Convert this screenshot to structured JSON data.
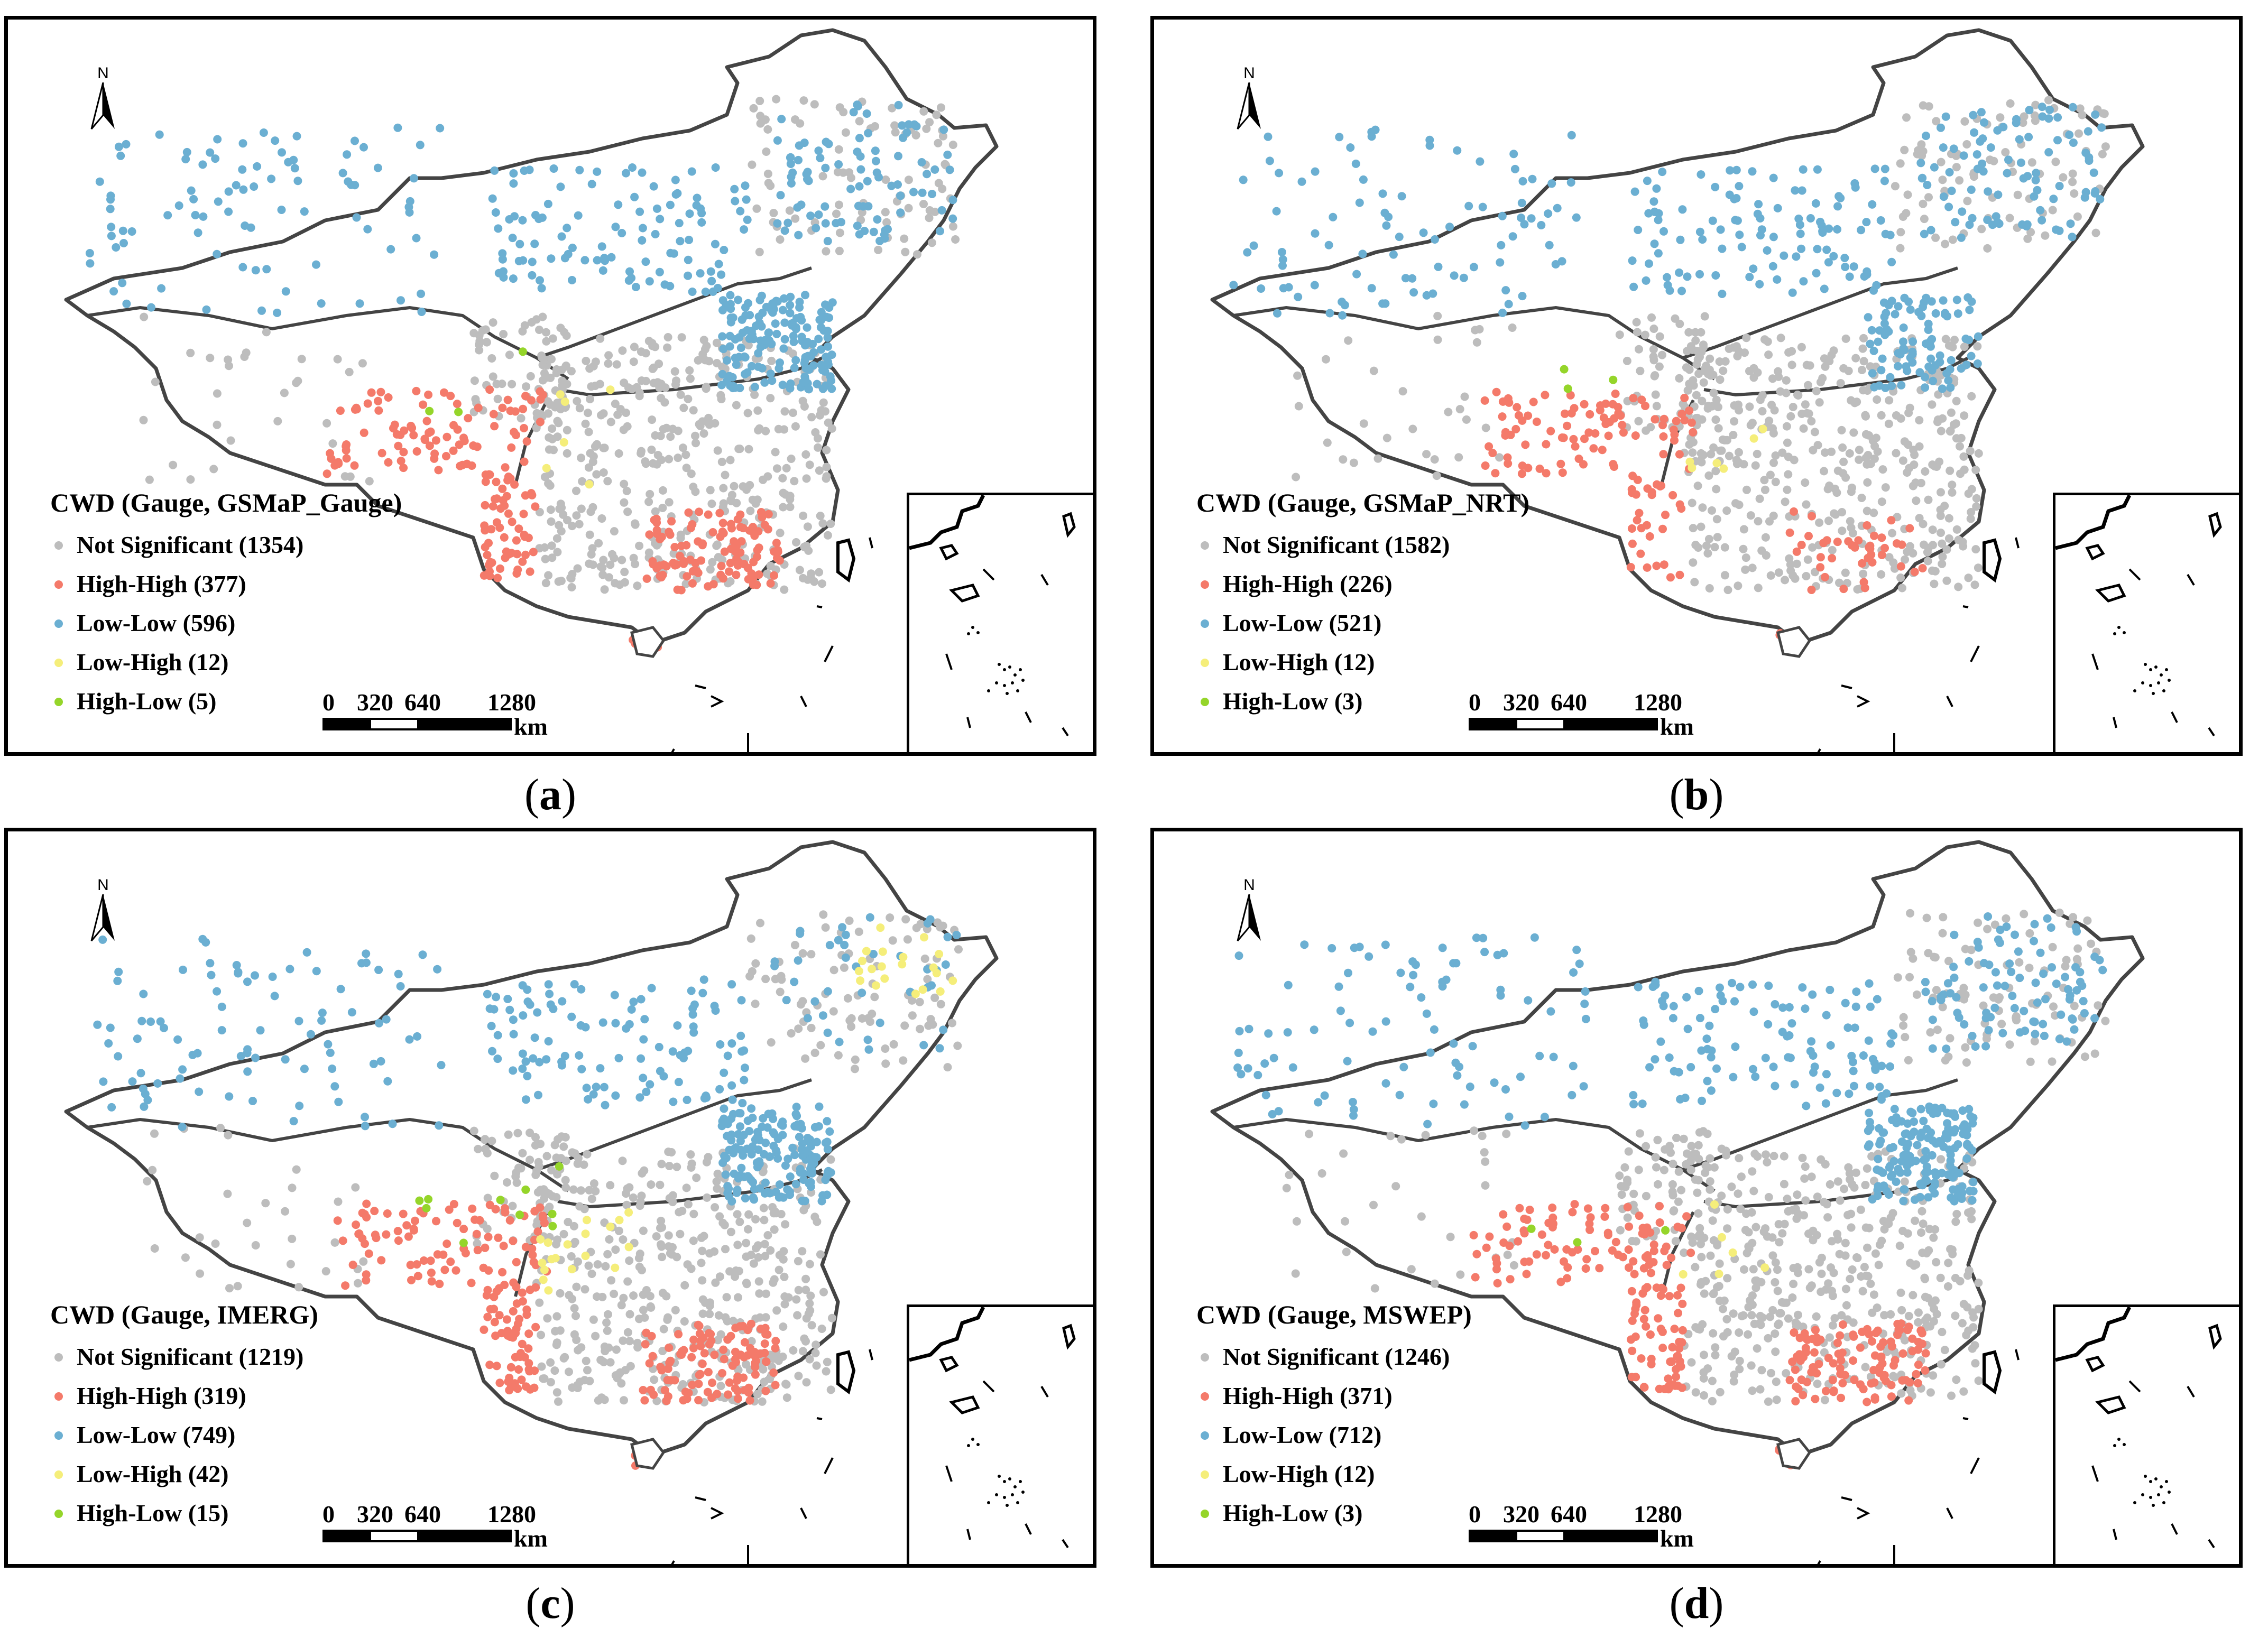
{
  "colors": {
    "not_significant": "#bdbdbd",
    "high_high": "#f47a6a",
    "low_low": "#6bafd2",
    "low_high": "#f5ee7a",
    "high_low": "#95d52a"
  },
  "north_label": "N",
  "scale": {
    "labels": [
      "0",
      "320",
      "640",
      "1280"
    ],
    "unit": "km"
  },
  "panels": [
    {
      "caption_letter": "a",
      "title": "CWD (Gauge, GSMaP_Gauge)",
      "legend": [
        {
          "key": "not_significant",
          "label": "Not Significant (1354)"
        },
        {
          "key": "high_high",
          "label": "High-High (377)"
        },
        {
          "key": "low_low",
          "label": "Low-Low (596)"
        },
        {
          "key": "low_high",
          "label": "Low-High (12)"
        },
        {
          "key": "high_low",
          "label": "High-Low (5)"
        }
      ]
    },
    {
      "caption_letter": "b",
      "title": "CWD (Gauge, GSMaP_NRT)",
      "legend": [
        {
          "key": "not_significant",
          "label": "Not Significant (1582)"
        },
        {
          "key": "high_high",
          "label": "High-High (226)"
        },
        {
          "key": "low_low",
          "label": "Low-Low (521)"
        },
        {
          "key": "low_high",
          "label": "Low-High (12)"
        },
        {
          "key": "high_low",
          "label": "High-Low (3)"
        }
      ]
    },
    {
      "caption_letter": "c",
      "title": "CWD (Gauge, IMERG)",
      "legend": [
        {
          "key": "not_significant",
          "label": "Not Significant (1219)"
        },
        {
          "key": "high_high",
          "label": "High-High (319)"
        },
        {
          "key": "low_low",
          "label": "Low-Low (749)"
        },
        {
          "key": "low_high",
          "label": "Low-High (42)"
        },
        {
          "key": "high_low",
          "label": "High-Low (15)"
        }
      ]
    },
    {
      "caption_letter": "d",
      "title": "CWD (Gauge, MSWEP)",
      "legend": [
        {
          "key": "not_significant",
          "label": "Not Significant (1246)"
        },
        {
          "key": "high_high",
          "label": "High-High (371)"
        },
        {
          "key": "low_low",
          "label": "Low-Low (712)"
        },
        {
          "key": "low_high",
          "label": "Low-High (12)"
        },
        {
          "key": "high_low",
          "label": "High-Low (3)"
        }
      ]
    }
  ]
}
